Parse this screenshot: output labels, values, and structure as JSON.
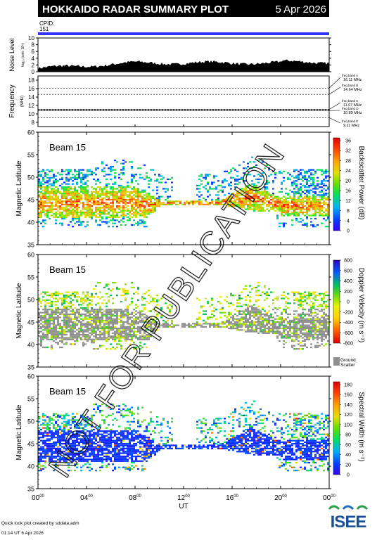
{
  "header": {
    "title": "HOKKAIDO RADAR SUMMARY PLOT",
    "date": "5 Apr 2026",
    "cpid_label": "CPID:",
    "cpid_value": "151"
  },
  "noise_panel": {
    "label": "Noise Level",
    "sublabel": "log₁₀ (unit: 10⁵)",
    "yticks": [
      "0",
      "2",
      "4",
      "6",
      "8",
      "10"
    ],
    "ylim": [
      0,
      10
    ]
  },
  "freq_panel": {
    "label": "Frequency",
    "unit": "(MHz)",
    "yticks": [
      "8",
      "10",
      "12",
      "14",
      "16",
      "18"
    ],
    "ylim": [
      7,
      19
    ],
    "bands": [
      {
        "name": "freq band A",
        "value": 16.11,
        "text": "16.11 MHz"
      },
      {
        "name": "freq band B",
        "value": 14.64,
        "text": "14.64 MHz"
      },
      {
        "name": "freq band C",
        "value": 11.07,
        "text": "11.07 MHz"
      },
      {
        "name": "freq band D",
        "value": 10.8,
        "text": "10.80 MHz"
      },
      {
        "name": "freq band E",
        "value": 9.11,
        "text": "9.11 MHz"
      }
    ]
  },
  "panels": [
    {
      "id": "power",
      "beam": "Beam 15",
      "ylabel": "Magnetic Latitude",
      "cbar_label": "Backscatter Power (dB)",
      "cbar_ticks": [
        "0",
        "4",
        "8",
        "12",
        "16",
        "20",
        "24",
        "28",
        "32",
        "36"
      ],
      "cbar": "rainbow",
      "ground": false
    },
    {
      "id": "velocity",
      "beam": "Beam 15",
      "ylabel": "Magnetic Latitude",
      "cbar_label": "Doppler Velocity (m s⁻¹)",
      "cbar_ticks": [
        "-800",
        "-600",
        "-400",
        "-200",
        "0",
        "200",
        "400",
        "600",
        "800"
      ],
      "cbar": "velocity",
      "ground": true,
      "ground_label_1": "Ground",
      "ground_label_2": "Scatter"
    },
    {
      "id": "width",
      "beam": "Beam 15",
      "ylabel": "Magnetic Latitude",
      "cbar_label": "Spectral Width (m s⁻¹)",
      "cbar_ticks": [
        "0",
        "20",
        "40",
        "60",
        "80",
        "100",
        "120",
        "140",
        "160",
        "180"
      ],
      "cbar": "rainbow",
      "ground": false
    }
  ],
  "lat_ticks": [
    "35",
    "40",
    "45",
    "50",
    "55",
    "60"
  ],
  "x_axis": {
    "label": "UT",
    "ticks": [
      "00",
      "04",
      "08",
      "12",
      "16",
      "20",
      "00"
    ],
    "tick_sup": "00"
  },
  "watermark": "NOT FOR PUBLICATION",
  "footer": {
    "credit": "Quick look plot created by sddata.adm",
    "timestamp": "01:14 UT  6 Apr 2026",
    "logo": "ISEE"
  },
  "chart_data": {
    "type": "heatmap",
    "x": {
      "label": "UT",
      "range_hours": [
        0,
        24
      ]
    },
    "y": {
      "label": "Magnetic Latitude",
      "range": [
        35,
        60
      ]
    },
    "series": [
      {
        "name": "Backscatter Power (dB)",
        "range": [
          0,
          36
        ]
      },
      {
        "name": "Doppler Velocity (m s⁻¹)",
        "range": [
          -800,
          800
        ]
      },
      {
        "name": "Spectral Width (m s⁻¹)",
        "range": [
          0,
          180
        ]
      }
    ],
    "colors": {
      "frame": "#000000",
      "cpid_bar": "#3333ff",
      "ground_scatter": "#909090"
    }
  }
}
